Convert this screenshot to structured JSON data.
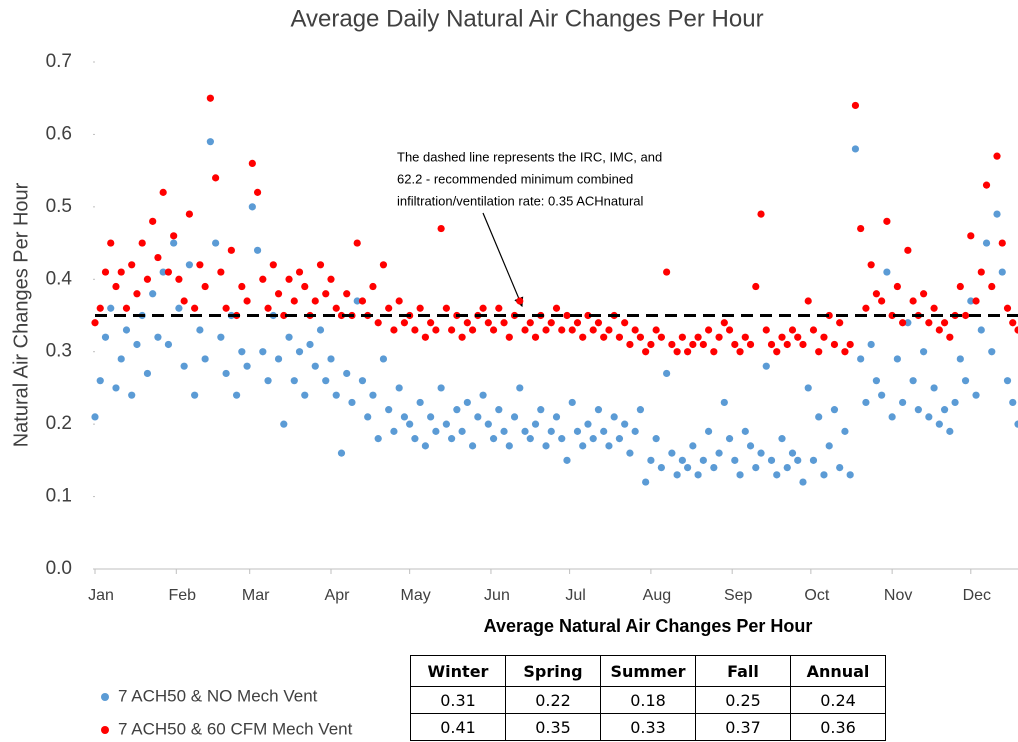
{
  "chart_data": {
    "type": "scatter",
    "title": "Average Daily Natural Air Changes Per Hour",
    "xlabel": "Average Natural Air Changes Per Hour",
    "ylabel": "Natural Air Changes Per Hour",
    "annotation": [
      "The dashed line represents the IRC, IMC, and",
      "62.2 - recommended minimum combined",
      "infiltration/ventilation rate: 0.35 ACHnatural"
    ],
    "reference_line": 0.35,
    "xlim": [
      1,
      353
    ],
    "xticks": [
      {
        "value": 1,
        "label": "Jan"
      },
      {
        "value": 32,
        "label": "Feb"
      },
      {
        "value": 60,
        "label": "Mar"
      },
      {
        "value": 91,
        "label": "Apr"
      },
      {
        "value": 121,
        "label": "May"
      },
      {
        "value": 152,
        "label": "Jun"
      },
      {
        "value": 182,
        "label": "Jul"
      },
      {
        "value": 213,
        "label": "Aug"
      },
      {
        "value": 244,
        "label": "Sep"
      },
      {
        "value": 274,
        "label": "Oct"
      },
      {
        "value": 305,
        "label": "Nov"
      },
      {
        "value": 335,
        "label": "Dec"
      }
    ],
    "ylim": [
      0,
      0.7
    ],
    "yticks": [
      {
        "value": 0,
        "label": "0.0"
      },
      0.1,
      0.2,
      0.3,
      0.4,
      0.5,
      0.6,
      0.7
    ],
    "x": [
      1,
      3,
      5,
      7,
      9,
      11,
      13,
      15,
      17,
      19,
      21,
      23,
      25,
      27,
      29,
      31,
      33,
      35,
      37,
      39,
      41,
      43,
      45,
      47,
      49,
      51,
      53,
      55,
      57,
      59,
      61,
      63,
      65,
      67,
      69,
      71,
      73,
      75,
      77,
      79,
      81,
      83,
      85,
      87,
      89,
      91,
      93,
      95,
      97,
      99,
      101,
      103,
      105,
      107,
      109,
      111,
      113,
      115,
      117,
      119,
      121,
      123,
      125,
      127,
      129,
      131,
      133,
      135,
      137,
      139,
      141,
      143,
      145,
      147,
      149,
      151,
      153,
      155,
      157,
      159,
      161,
      163,
      165,
      167,
      169,
      171,
      173,
      175,
      177,
      179,
      181,
      183,
      185,
      187,
      189,
      191,
      193,
      195,
      197,
      199,
      201,
      203,
      205,
      207,
      209,
      211,
      213,
      215,
      217,
      219,
      221,
      223,
      225,
      227,
      229,
      231,
      233,
      235,
      237,
      239,
      241,
      243,
      245,
      247,
      249,
      251,
      253,
      255,
      257,
      259,
      261,
      263,
      265,
      267,
      269,
      271,
      273,
      275,
      277,
      279,
      281,
      283,
      285,
      287,
      289,
      291,
      293,
      295,
      297,
      299,
      301,
      303,
      305,
      307,
      309,
      311,
      313,
      315,
      317,
      319,
      321,
      323,
      325,
      327,
      329,
      331,
      333,
      335,
      337,
      339,
      341,
      343,
      345,
      347,
      349,
      351,
      353
    ],
    "series": [
      {
        "name": "7 ACH50 & NO Mech Vent",
        "color": "#5b9bd5",
        "values": [
          0.21,
          0.26,
          0.32,
          0.36,
          0.25,
          0.29,
          0.33,
          0.24,
          0.31,
          0.35,
          0.27,
          0.38,
          0.32,
          0.41,
          0.31,
          0.45,
          0.36,
          0.28,
          0.42,
          0.24,
          0.33,
          0.29,
          0.59,
          0.45,
          0.32,
          0.27,
          0.35,
          0.24,
          0.3,
          0.28,
          0.5,
          0.44,
          0.3,
          0.26,
          0.35,
          0.29,
          0.2,
          0.32,
          0.26,
          0.3,
          0.24,
          0.31,
          0.28,
          0.33,
          0.26,
          0.29,
          0.24,
          0.16,
          0.27,
          0.23,
          0.37,
          0.26,
          0.21,
          0.24,
          0.18,
          0.29,
          0.22,
          0.19,
          0.25,
          0.21,
          0.2,
          0.18,
          0.23,
          0.17,
          0.21,
          0.19,
          0.25,
          0.2,
          0.18,
          0.22,
          0.19,
          0.23,
          0.17,
          0.21,
          0.24,
          0.2,
          0.18,
          0.22,
          0.19,
          0.17,
          0.21,
          0.25,
          0.19,
          0.18,
          0.2,
          0.22,
          0.17,
          0.19,
          0.21,
          0.18,
          0.15,
          0.23,
          0.19,
          0.17,
          0.2,
          0.18,
          0.22,
          0.19,
          0.17,
          0.21,
          0.18,
          0.2,
          0.16,
          0.19,
          0.22,
          0.12,
          0.15,
          0.18,
          0.14,
          0.27,
          0.16,
          0.13,
          0.15,
          0.14,
          0.17,
          0.13,
          0.15,
          0.19,
          0.14,
          0.16,
          0.23,
          0.18,
          0.15,
          0.13,
          0.19,
          0.17,
          0.14,
          0.16,
          0.28,
          0.15,
          0.13,
          0.18,
          0.14,
          0.16,
          0.15,
          0.12,
          0.25,
          0.15,
          0.21,
          0.13,
          0.17,
          0.22,
          0.14,
          0.19,
          0.13,
          0.58,
          0.29,
          0.23,
          0.31,
          0.26,
          0.24,
          0.41,
          0.21,
          0.29,
          0.23,
          0.34,
          0.26,
          0.22,
          0.3,
          0.21,
          0.25,
          0.2,
          0.22,
          0.19,
          0.23,
          0.29,
          0.26,
          0.37,
          0.24,
          0.33,
          0.45,
          0.3,
          0.49,
          0.41,
          0.26,
          0.23,
          0.2
        ]
      },
      {
        "name": "7 ACH50 & 60 CFM Mech Vent",
        "color": "#ff0000",
        "values": [
          0.34,
          0.36,
          0.41,
          0.45,
          0.39,
          0.41,
          0.36,
          0.42,
          0.38,
          0.45,
          0.4,
          0.48,
          0.43,
          0.52,
          0.41,
          0.46,
          0.4,
          0.37,
          0.49,
          0.36,
          0.42,
          0.39,
          0.65,
          0.54,
          0.41,
          0.36,
          0.44,
          0.35,
          0.39,
          0.37,
          0.56,
          0.52,
          0.4,
          0.36,
          0.42,
          0.38,
          0.35,
          0.4,
          0.37,
          0.41,
          0.39,
          0.35,
          0.37,
          0.42,
          0.38,
          0.4,
          0.36,
          0.35,
          0.38,
          0.35,
          0.45,
          0.37,
          0.35,
          0.39,
          0.34,
          0.42,
          0.36,
          0.33,
          0.37,
          0.34,
          0.35,
          0.33,
          0.36,
          0.32,
          0.34,
          0.33,
          0.47,
          0.36,
          0.33,
          0.35,
          0.32,
          0.34,
          0.33,
          0.35,
          0.36,
          0.34,
          0.33,
          0.36,
          0.34,
          0.32,
          0.35,
          0.37,
          0.33,
          0.34,
          0.32,
          0.35,
          0.33,
          0.34,
          0.36,
          0.33,
          0.35,
          0.33,
          0.34,
          0.32,
          0.35,
          0.33,
          0.34,
          0.32,
          0.33,
          0.35,
          0.32,
          0.34,
          0.31,
          0.33,
          0.32,
          0.3,
          0.31,
          0.33,
          0.32,
          0.41,
          0.31,
          0.3,
          0.32,
          0.3,
          0.31,
          0.32,
          0.31,
          0.33,
          0.3,
          0.32,
          0.34,
          0.33,
          0.31,
          0.3,
          0.32,
          0.31,
          0.39,
          0.49,
          0.33,
          0.31,
          0.3,
          0.32,
          0.31,
          0.33,
          0.32,
          0.31,
          0.37,
          0.33,
          0.3,
          0.32,
          0.35,
          0.31,
          0.34,
          0.3,
          0.31,
          0.64,
          0.47,
          0.36,
          0.42,
          0.38,
          0.37,
          0.48,
          0.35,
          0.39,
          0.34,
          0.44,
          0.37,
          0.35,
          0.38,
          0.34,
          0.36,
          0.33,
          0.34,
          0.32,
          0.35,
          0.39,
          0.35,
          0.46,
          0.37,
          0.41,
          0.53,
          0.39,
          0.57,
          0.45,
          0.36,
          0.34,
          0.33
        ]
      }
    ]
  },
  "table": {
    "columns": [
      "Winter",
      "Spring",
      "Summer",
      "Fall",
      "Annual"
    ],
    "rows": [
      [
        0.31,
        0.22,
        0.18,
        0.25,
        0.24
      ],
      [
        0.41,
        0.35,
        0.33,
        0.37,
        0.36
      ]
    ]
  }
}
